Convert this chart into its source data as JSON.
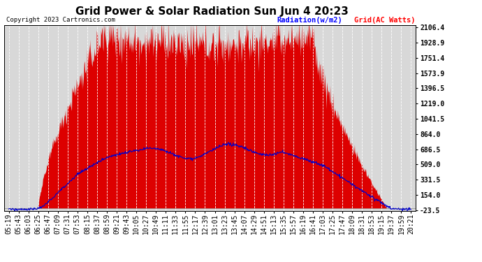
{
  "title": "Grid Power & Solar Radiation Sun Jun 4 20:23",
  "copyright": "Copyright 2023 Cartronics.com",
  "legend_radiation": "Radiation(w/m2)",
  "legend_grid": "Grid(AC Watts)",
  "yticks": [
    -23.5,
    154.0,
    331.5,
    509.0,
    686.5,
    864.0,
    1041.5,
    1219.0,
    1396.5,
    1573.9,
    1751.4,
    1928.9,
    2106.4
  ],
  "ymin": -23.5,
  "ymax": 2106.4,
  "background_color": "#ffffff",
  "plot_bg_color": "#d8d8d8",
  "radiation_color": "#dd0000",
  "grid_line_color": "#0000cc",
  "title_fontsize": 11,
  "tick_fontsize": 7,
  "xtick_labels": [
    "05:19",
    "05:43",
    "06:03",
    "06:25",
    "06:47",
    "07:09",
    "07:31",
    "07:53",
    "08:15",
    "08:37",
    "08:59",
    "09:21",
    "09:43",
    "10:05",
    "10:27",
    "10:49",
    "11:11",
    "11:33",
    "11:55",
    "12:17",
    "12:39",
    "13:01",
    "13:23",
    "13:45",
    "14:07",
    "14:29",
    "14:51",
    "15:13",
    "15:35",
    "15:57",
    "16:19",
    "16:41",
    "17:03",
    "17:25",
    "17:47",
    "18:09",
    "18:31",
    "18:53",
    "19:15",
    "19:37",
    "19:59",
    "20:21"
  ]
}
